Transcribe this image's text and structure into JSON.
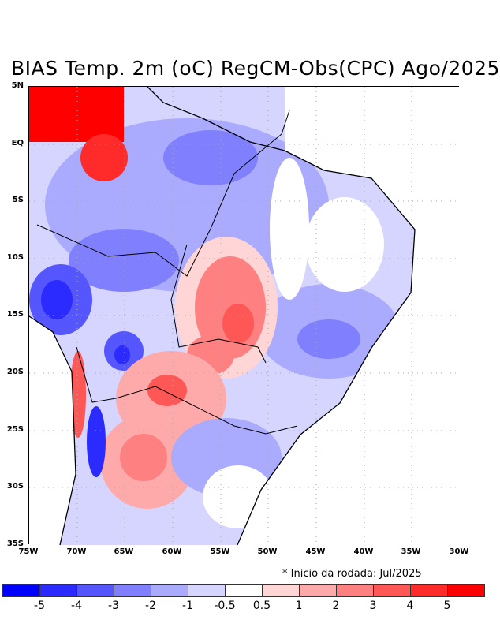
{
  "title": "BIAS Temp. 2m (oC) RegCM-Obs(CPC) Ago/2025",
  "note": "* Inicio da rodada: Jul/2025",
  "lat_labels": [
    "5N",
    "EQ",
    "5S",
    "10S",
    "15S",
    "20S",
    "25S",
    "30S",
    "35S"
  ],
  "lon_labels": [
    "75W",
    "70W",
    "65W",
    "60W",
    "55W",
    "50W",
    "45W",
    "40W",
    "35W",
    "30W"
  ],
  "colorbar": {
    "colors": [
      "#0000ff",
      "#2b2bff",
      "#5656ff",
      "#8080ff",
      "#aaaaff",
      "#d5d5ff",
      "#ffffff",
      "#ffd5d5",
      "#ffaaaa",
      "#ff8080",
      "#ff5656",
      "#ff2b2b",
      "#ff0000"
    ],
    "labels": [
      "-5",
      "-4",
      "-3",
      "-2",
      "-1",
      "-0.5",
      "0.5",
      "1",
      "2",
      "3",
      "4",
      "5"
    ]
  }
}
